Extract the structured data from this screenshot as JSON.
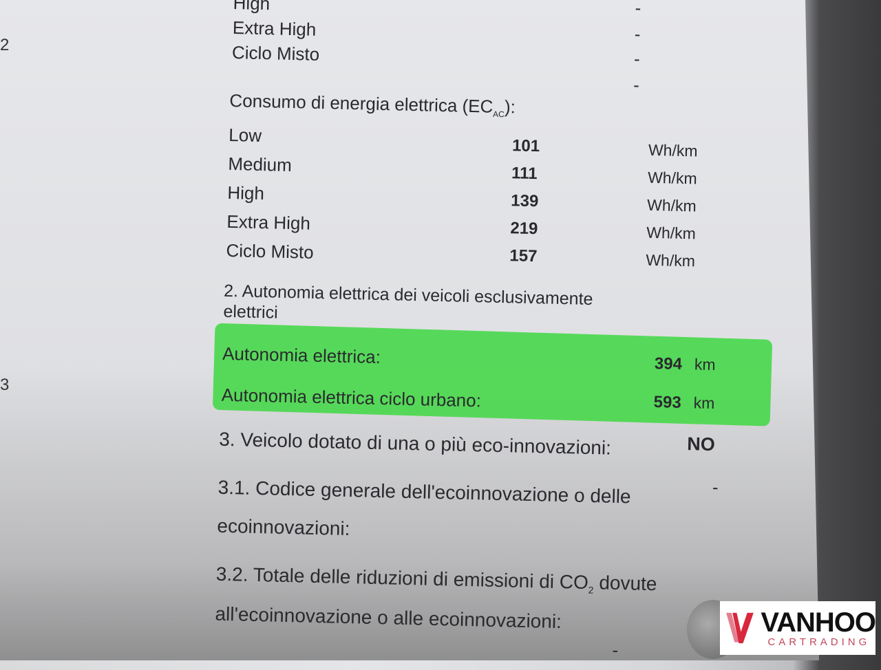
{
  "top_rows": [
    {
      "label": "High",
      "value": "-"
    },
    {
      "label": "Extra High",
      "value": "-"
    },
    {
      "label": "Ciclo Misto",
      "value": "-"
    },
    {
      "label": "",
      "value": "-"
    }
  ],
  "consumption": {
    "heading": "Consumo di energia elettrica (EC",
    "heading_sub": "AC",
    "heading_end": "):",
    "rows": [
      {
        "label": "Low",
        "value": "101",
        "unit": "Wh/km"
      },
      {
        "label": "Medium",
        "value": "111",
        "unit": "Wh/km"
      },
      {
        "label": "High",
        "value": "139",
        "unit": "Wh/km"
      },
      {
        "label": "Extra High",
        "value": "219",
        "unit": "Wh/km"
      },
      {
        "label": "Ciclo Misto",
        "value": "157",
        "unit": "Wh/km"
      }
    ]
  },
  "section2": {
    "heading_line1": "2. Autonomia elettrica dei veicoli esclusivamente",
    "heading_line2": "elettrici",
    "rows": [
      {
        "label": "Autonomia elettrica:",
        "value": "394",
        "unit": "km"
      },
      {
        "label": "Autonomia elettrica ciclo urbano:",
        "value": "593",
        "unit": "km"
      }
    ],
    "highlight_color": "#47d84a"
  },
  "section3": {
    "label": "3. Veicolo dotato di una o più eco-innovazioni:",
    "value": "NO",
    "s31_line1": "3.1. Codice generale dell'ecoinnovazione o delle",
    "s31_line2": "ecoinnovazioni:",
    "s31_value": "-",
    "s32_line1": "3.2. Totale delle riduzioni di emissioni di CO",
    "s32_sub": "2",
    "s32_line1_end": " dovute",
    "s32_line2": "all'ecoinnovazione o alle ecoinnovazioni:",
    "bottom_value": "-"
  },
  "margin_marks": [
    "2",
    "3"
  ],
  "logo": {
    "name": "VANHOO",
    "tagline": "CARTRADING",
    "accent": "#d8283c"
  }
}
